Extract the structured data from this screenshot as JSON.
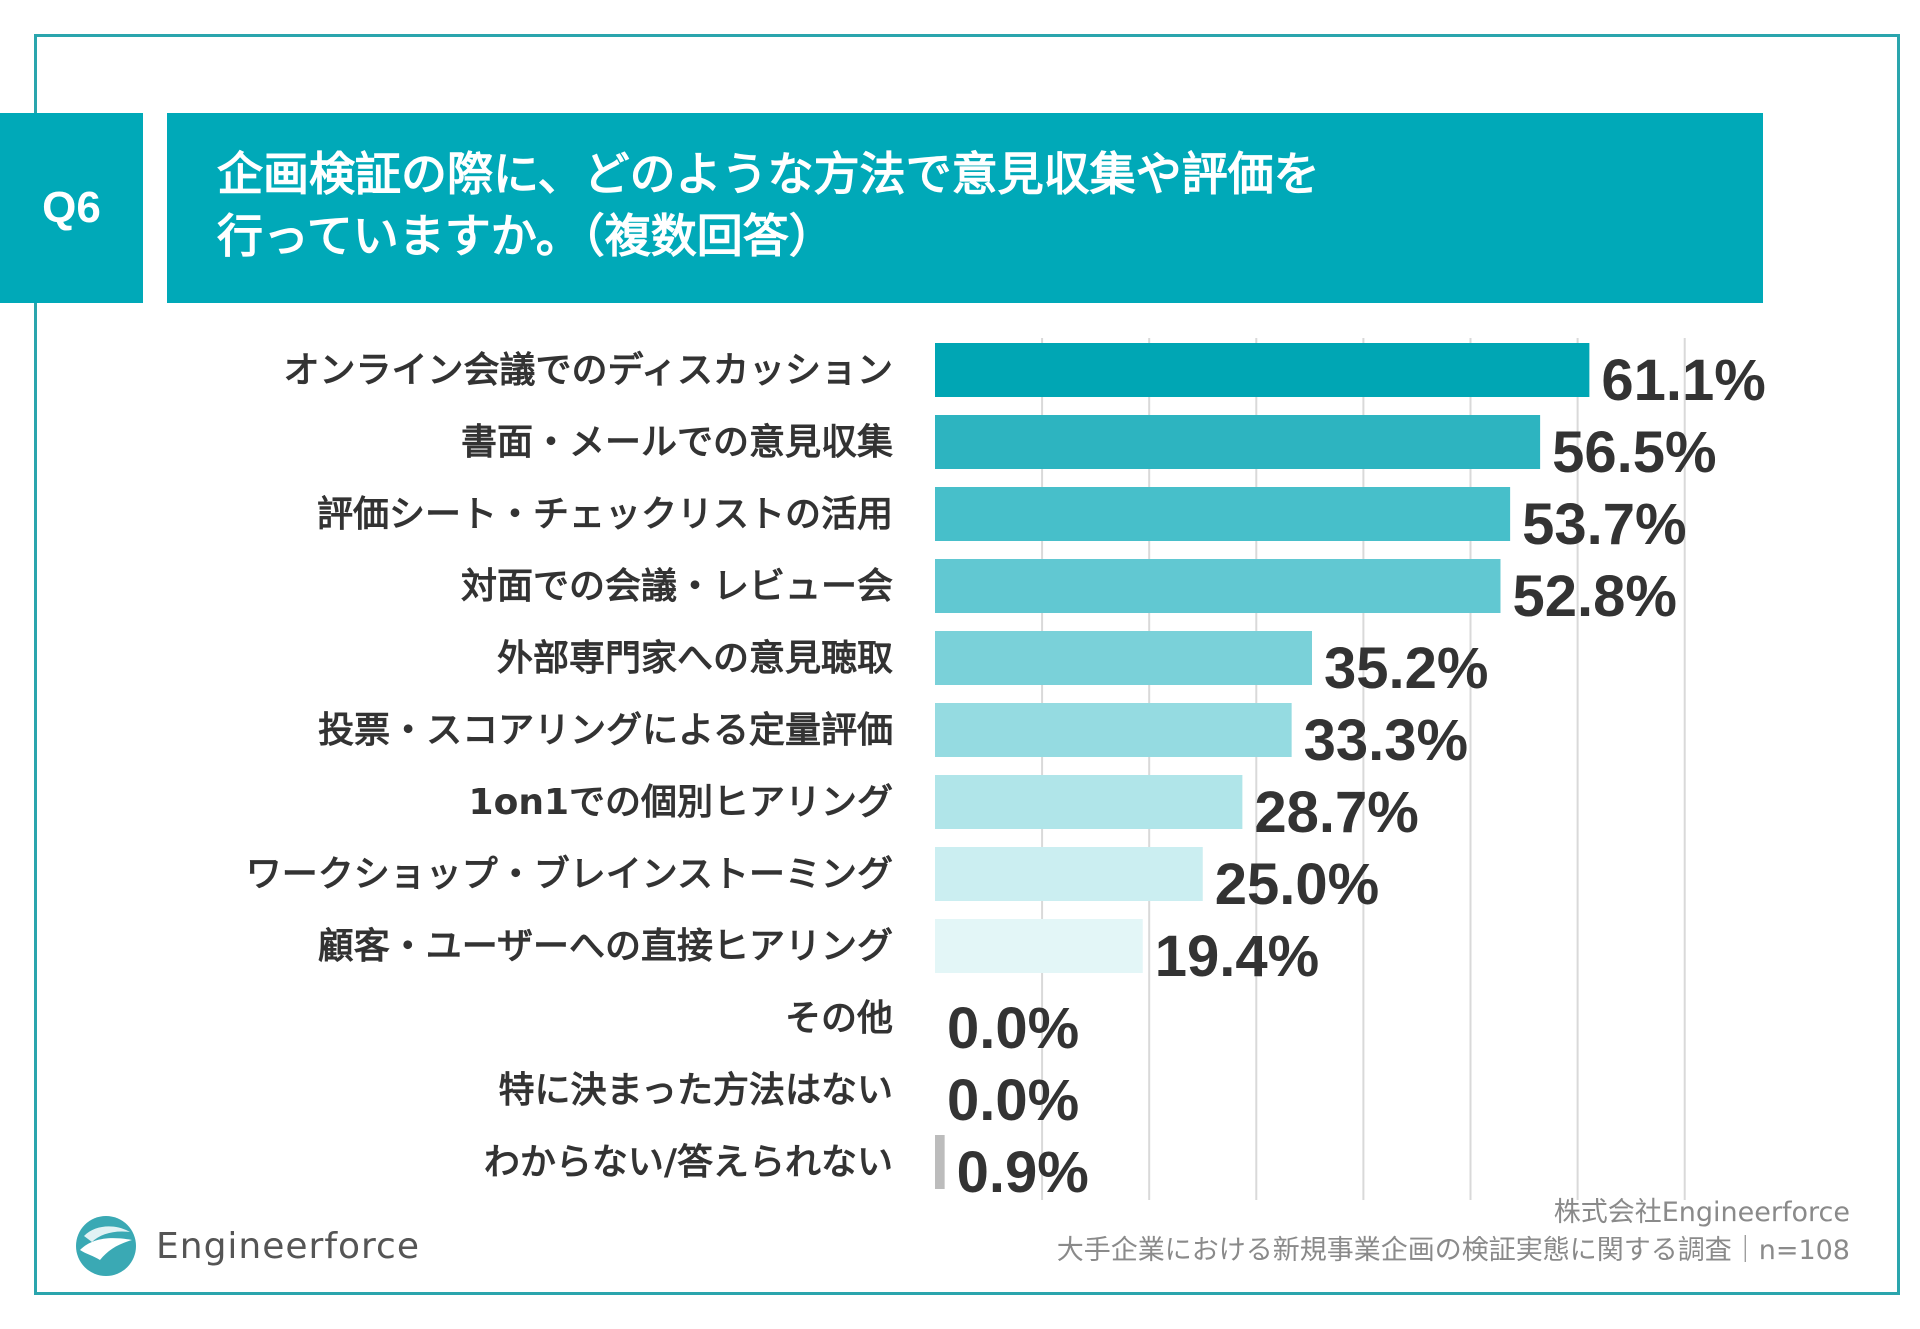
{
  "header": {
    "badge": "Q6",
    "title_line1": "企画検証の際に、どのような方法で意見収集や評価を",
    "title_line2": "行っていますか。（複数回答）"
  },
  "colors": {
    "accent": "#00a9b8",
    "frame": "#2aa5ad",
    "bars": [
      "#00a6b4",
      "#2db4c0",
      "#47bfca",
      "#61c8d2",
      "#7ad1d9",
      "#95dbe1",
      "#b0e5e9",
      "#cbeef1",
      "#e3f6f7",
      "#e3f6f7",
      "#e3f6f7",
      "#bcbcbc"
    ],
    "grid": "#d9d9d9"
  },
  "chart_data": {
    "type": "bar",
    "orientation": "horizontal",
    "categories": [
      "オンライン会議でのディスカッション",
      "書面・メールでの意見収集",
      "評価シート・チェックリストの活用",
      "対面での会議・レビュー会",
      "外部専門家への意見聴取",
      "投票・スコアリングによる定量評価",
      "1on1での個別ヒアリング",
      "ワークショップ・ブレインストーミング",
      "顧客・ユーザーへの直接ヒアリング",
      "その他",
      "特に決まった方法はない",
      "わからない/答えられない"
    ],
    "values": [
      61.1,
      56.5,
      53.7,
      52.8,
      35.2,
      33.3,
      28.7,
      25.0,
      19.4,
      0.0,
      0.0,
      0.9
    ],
    "labels": [
      "61.1%",
      "56.5%",
      "53.7%",
      "52.8%",
      "35.2%",
      "33.3%",
      "28.7%",
      "25.0%",
      "19.4%",
      "0.0%",
      "0.0%",
      "0.9%"
    ],
    "xlim": [
      0,
      70
    ],
    "grid_step": 10,
    "grid": true,
    "legend": "none",
    "unit": "%"
  },
  "footer": {
    "company": "株式会社Engineerforce",
    "survey": "大手企業における新規事業企画の検証実態に関する調査｜n=108"
  },
  "logo": {
    "text": "Engineerforce",
    "icon": "engineerforce-logo-icon"
  }
}
